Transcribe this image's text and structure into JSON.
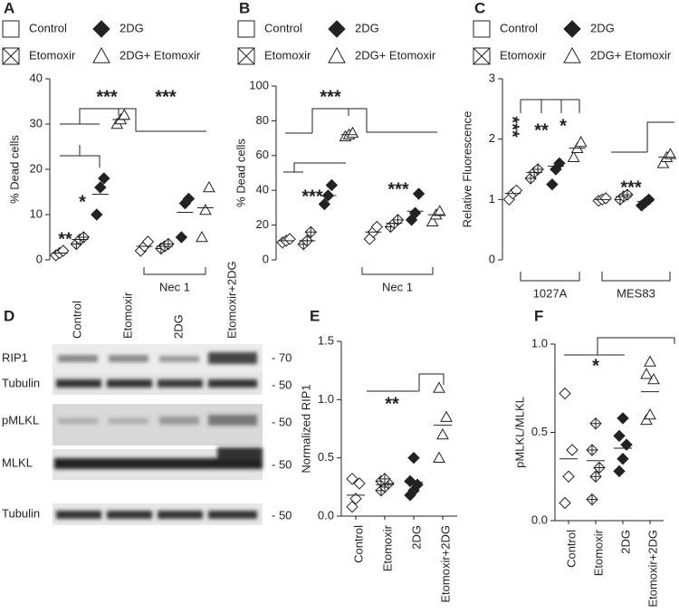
{
  "chart_data": [
    {
      "type": "dot",
      "panel_label": "A",
      "y_label": "% Dead cells",
      "color": "#222",
      "categories": [
        null,
        "Nec 1"
      ],
      "series": [
        {
          "name": "Control",
          "marker": "diamond",
          "values": [
            [
              1,
              1.5,
              2
            ],
            [
              2,
              3,
              4
            ]
          ],
          "medians": [
            1.5,
            3
          ]
        },
        {
          "name": "Etomoxir",
          "marker": "crossed-diamond",
          "values": [
            [
              3.5,
              4.5,
              5
            ],
            [
              2.5,
              3,
              3.5
            ]
          ],
          "medians": [
            4.5,
            3
          ]
        },
        {
          "name": "2DG",
          "marker": "filled-diamond",
          "values": [
            [
              10,
              16,
              18
            ],
            [
              5,
              12.5,
              13.5
            ]
          ],
          "medians": [
            14.5,
            10.5
          ]
        },
        {
          "name": "2DG+ Etomoxir",
          "marker": "triangle",
          "values": [
            [
              30,
              31,
              32
            ],
            [
              5,
              11,
              16
            ]
          ],
          "medians": [
            31,
            11.5
          ]
        }
      ],
      "annotations": [
        "**",
        "*",
        "***",
        "***"
      ],
      "ylim": [
        0,
        40
      ],
      "yticks": [
        0,
        10,
        20,
        30,
        40
      ]
    },
    {
      "type": "dot",
      "panel_label": "B",
      "y_label": "% Dead cells",
      "color": "#222",
      "categories": [
        null,
        "Nec 1"
      ],
      "series": [
        {
          "name": "Control",
          "marker": "diamond",
          "values": [
            [
              10,
              11,
              12
            ],
            [
              12,
              16,
              19
            ]
          ],
          "medians": [
            11,
            16
          ]
        },
        {
          "name": "Etomoxir",
          "marker": "crossed-diamond",
          "values": [
            [
              9,
              11,
              16
            ],
            [
              19,
              21,
              23
            ]
          ],
          "medians": [
            11,
            21
          ]
        },
        {
          "name": "2DG",
          "marker": "filled-diamond",
          "values": [
            [
              32,
              37,
              43
            ],
            [
              23,
              27,
              38
            ]
          ],
          "medians": [
            37,
            28
          ]
        },
        {
          "name": "2DG+ Etomoxir",
          "marker": "triangle",
          "values": [
            [
              71,
              72,
              73
            ],
            [
              22,
              26,
              28
            ]
          ],
          "medians": [
            72,
            26
          ]
        }
      ],
      "annotations": [
        "***",
        "***",
        "***"
      ],
      "ylim": [
        0,
        100
      ],
      "yticks": [
        0,
        20,
        40,
        60,
        80,
        100
      ]
    },
    {
      "type": "dot",
      "panel_label": "C",
      "y_label": "Relative Fluorescence",
      "color": "#222",
      "categories": [
        "1027A",
        "MES83"
      ],
      "series": [
        {
          "name": "Control",
          "marker": "diamond",
          "values": [
            [
              1.0,
              1.1,
              1.15
            ],
            [
              0.98,
              1.0,
              1.02
            ]
          ],
          "medians": [
            1.1,
            1.0
          ]
        },
        {
          "name": "Etomoxir",
          "marker": "crossed-diamond",
          "values": [
            [
              1.35,
              1.45,
              1.5
            ],
            [
              1.0,
              1.05,
              1.08
            ]
          ],
          "medians": [
            1.45,
            1.05
          ]
        },
        {
          "name": "2DG",
          "marker": "filled-diamond",
          "values": [
            [
              1.25,
              1.5,
              1.6
            ],
            [
              0.9,
              0.95,
              1.0
            ]
          ],
          "medians": [
            1.55,
            0.97
          ]
        },
        {
          "name": "2DG+ Etomoxir",
          "marker": "triangle",
          "values": [
            [
              1.7,
              1.85,
              1.95
            ],
            [
              1.6,
              1.7,
              1.75
            ]
          ],
          "medians": [
            1.85,
            1.7
          ]
        }
      ],
      "annotations": [
        "***",
        "**",
        "*",
        "***"
      ],
      "ylim": [
        0,
        3
      ],
      "yticks": [
        0,
        1,
        2,
        3
      ]
    },
    {
      "type": "column-dot",
      "panel_label": "E",
      "y_label": "Normalized RIP1",
      "color": "#222",
      "categories": [
        "Control",
        "Etomoxir",
        "2DG",
        "Etomoxir+2DG"
      ],
      "markers": [
        "diamond",
        "crossed-diamond",
        "filled-diamond",
        "triangle"
      ],
      "values": [
        [
          0.08,
          0.15,
          0.28,
          0.32
        ],
        [
          0.22,
          0.25,
          0.28,
          0.3,
          0.32
        ],
        [
          0.18,
          0.22,
          0.27,
          0.3,
          0.5
        ],
        [
          0.5,
          0.7,
          0.85,
          1.1
        ]
      ],
      "medians": [
        0.18,
        0.27,
        0.29,
        0.78
      ],
      "annotations": [
        "**"
      ],
      "ylim": [
        0,
        1.5
      ],
      "yticks": [
        {
          "value": 0,
          "label": "0.0"
        },
        0.5,
        {
          "value": 1,
          "label": "1.0"
        },
        1.5
      ]
    },
    {
      "type": "column-dot",
      "panel_label": "F",
      "y_label": "pMLKL/MLKL",
      "color": "#222",
      "categories": [
        "Control",
        "Etomoxir",
        "2DG",
        "Etomoxir+2DG"
      ],
      "markers": [
        "diamond",
        "crossed-diamond",
        "filled-diamond",
        "triangle"
      ],
      "values": [
        [
          0.1,
          0.25,
          0.4,
          0.72
        ],
        [
          0.12,
          0.25,
          0.3,
          0.4,
          0.55
        ],
        [
          0.28,
          0.35,
          0.43,
          0.48,
          0.58
        ],
        [
          0.57,
          0.6,
          0.8,
          0.83,
          0.9
        ]
      ],
      "medians": [
        0.35,
        0.34,
        0.41,
        0.73
      ],
      "annotations": [
        "*"
      ],
      "ylim": [
        0,
        1
      ],
      "yticks": [
        {
          "value": 0,
          "label": "0.0"
        },
        0.5,
        {
          "value": 1,
          "label": "1.0"
        }
      ]
    }
  ],
  "blot": {
    "panel_label": "D",
    "lanes": [
      "Control",
      "Etomoxir",
      "2DG",
      "Etomoxir+2DG"
    ],
    "rows": [
      "RIP1",
      "Tubulin",
      "pMLKL",
      "MLKL",
      "Tubulin"
    ],
    "markers": [
      "- 70",
      "- 50",
      "- 50",
      "- 50",
      "- 50"
    ]
  }
}
